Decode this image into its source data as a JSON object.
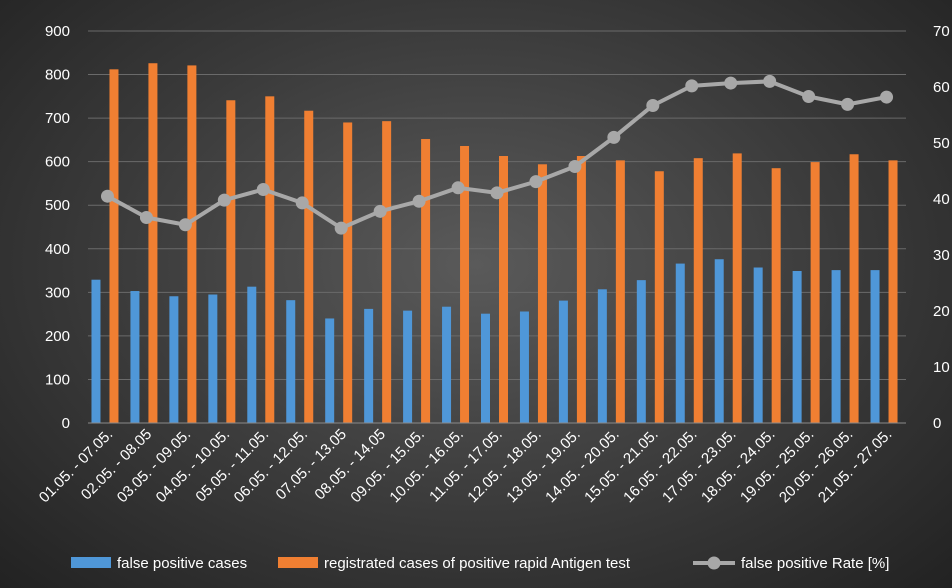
{
  "chart_data": {
    "type": "bar",
    "title": "",
    "xlabel": "",
    "ylabel": "",
    "categories": [
      "01.05. - 07.05.",
      "02.05. - 08.05",
      "03.05. - 09.05.",
      "04.05. - 10.05.",
      "05.05. - 11.05.",
      "06.05. - 12.05.",
      "07.05. - 13.05",
      "08.05. - 14.05",
      "09.05. - 15.05.",
      "10.05. - 16.05.",
      "11.05. - 17.05.",
      "12.05. - 18.05.",
      "13.05. - 19.05.",
      "14.05. - 20.05.",
      "15.05. - 21.05.",
      "16.05. - 22.05.",
      "17.05. - 23.05.",
      "18.05. - 24.05.",
      "19.05. - 25.05.",
      "20.05. - 26.05.",
      "21.05. - 27.05."
    ],
    "series": [
      {
        "name": "false positive cases",
        "type": "bar",
        "axis": "left",
        "color": "#4f97d8",
        "values": [
          329,
          303,
          291,
          295,
          313,
          282,
          240,
          262,
          258,
          267,
          251,
          256,
          281,
          307,
          328,
          366,
          376,
          357,
          349,
          351,
          351
        ]
      },
      {
        "name": "registrated cases of positive rapid Antigen test",
        "type": "bar",
        "axis": "left",
        "color": "#f07f32",
        "values": [
          812,
          826,
          821,
          741,
          750,
          717,
          690,
          693,
          652,
          636,
          613,
          594,
          613,
          603,
          578,
          608,
          619,
          585,
          599,
          617,
          603
        ]
      },
      {
        "name": "false positive Rate [%]",
        "type": "line",
        "axis": "right",
        "color": "#a8a8a8",
        "values": [
          40.5,
          36.7,
          35.4,
          39.8,
          41.7,
          39.3,
          34.8,
          37.8,
          39.6,
          42.0,
          41.1,
          43.1,
          45.8,
          51.0,
          56.7,
          60.2,
          60.7,
          61.0,
          58.3,
          56.9,
          58.2
        ]
      }
    ],
    "ylim": [
      0,
      900
    ],
    "yticks": [
      "0",
      "100",
      "200",
      "300",
      "400",
      "500",
      "600",
      "700",
      "800",
      "900"
    ],
    "y2lim": [
      0,
      70
    ],
    "y2ticks": [
      "0",
      "10",
      "20",
      "30",
      "40",
      "50",
      "60",
      "70"
    ],
    "grid": true,
    "legend": "bottom"
  }
}
